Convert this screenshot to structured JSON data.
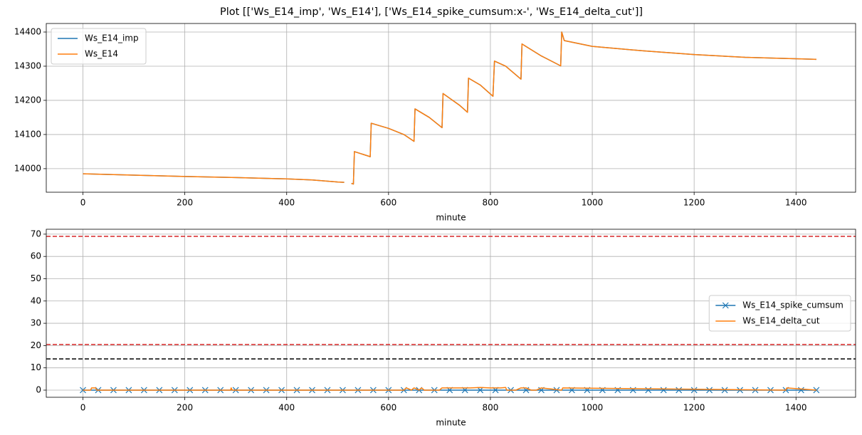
{
  "title": "Plot [['Ws_E14_imp', 'Ws_E14'], ['Ws_E14_spike_cumsum:x-', 'Ws_E14_delta_cut']]",
  "chart_data": [
    {
      "type": "line",
      "xlabel": "minute",
      "grid": true,
      "legend": "upper left",
      "xlim": [
        -72,
        1517
      ],
      "xticks": [
        0,
        200,
        400,
        600,
        800,
        1000,
        1200,
        1400
      ],
      "ylim": [
        13931,
        14425
      ],
      "yticks": [
        14000,
        14100,
        14200,
        14300,
        14400
      ],
      "series": [
        {
          "name": "Ws_E14_imp",
          "color": "#1f77b4",
          "x": [
            0,
            100,
            200,
            300,
            400,
            450,
            500,
            513,
            520,
            527,
            531,
            533,
            560,
            564,
            566,
            600,
            630,
            650,
            652,
            680,
            705,
            707,
            740,
            755,
            757,
            780,
            805,
            808,
            830,
            860,
            862,
            900,
            938,
            940,
            945,
            1000,
            1100,
            1200,
            1300,
            1440
          ],
          "values": [
            13985,
            13981,
            13977,
            13974,
            13970,
            13967,
            13961,
            13960,
            null,
            13957,
            13955,
            14050,
            14037,
            14035,
            14133,
            14118,
            14100,
            14080,
            14175,
            14150,
            14120,
            14220,
            14185,
            14165,
            14265,
            14245,
            14212,
            14315,
            14300,
            14262,
            14365,
            14330,
            14301,
            14400,
            14375,
            14358,
            14345,
            14334,
            14326,
            14320
          ]
        },
        {
          "name": "Ws_E14",
          "color": "#ff7f0e",
          "x": [
            0,
            100,
            200,
            300,
            400,
            450,
            500,
            513,
            520,
            527,
            531,
            533,
            560,
            564,
            566,
            600,
            630,
            650,
            652,
            680,
            705,
            707,
            740,
            755,
            757,
            780,
            805,
            808,
            830,
            860,
            862,
            900,
            938,
            940,
            945,
            1000,
            1100,
            1200,
            1300,
            1440
          ],
          "values": [
            13985,
            13981,
            13977,
            13974,
            13970,
            13967,
            13961,
            13960,
            null,
            13957,
            13955,
            14050,
            14037,
            14035,
            14133,
            14118,
            14100,
            14080,
            14175,
            14150,
            14120,
            14220,
            14185,
            14165,
            14265,
            14245,
            14212,
            14315,
            14300,
            14262,
            14365,
            14330,
            14301,
            14400,
            14375,
            14358,
            14345,
            14334,
            14326,
            14320
          ]
        }
      ]
    },
    {
      "type": "line",
      "xlabel": "minute",
      "grid": true,
      "legend": "center right",
      "xlim": [
        -72,
        1517
      ],
      "xticks": [
        0,
        200,
        400,
        600,
        800,
        1000,
        1200,
        1400
      ],
      "ylim": [
        -3.2,
        72.2
      ],
      "yticks": [
        0,
        10,
        20,
        30,
        40,
        50,
        60,
        70
      ],
      "hlines": [
        {
          "value": 69,
          "color": "#d62728"
        },
        {
          "value": 20.5,
          "color": "#d62728"
        },
        {
          "value": 14,
          "color": "#000000"
        }
      ],
      "series": [
        {
          "name": "Ws_E14_spike_cumsum",
          "color": "#1f77b4",
          "marker": "x",
          "x": [
            0,
            30,
            60,
            90,
            120,
            150,
            180,
            210,
            240,
            270,
            300,
            330,
            360,
            390,
            420,
            450,
            480,
            510,
            540,
            570,
            600,
            630,
            660,
            690,
            720,
            750,
            780,
            810,
            840,
            870,
            900,
            930,
            960,
            990,
            1020,
            1050,
            1080,
            1110,
            1140,
            1170,
            1200,
            1230,
            1260,
            1290,
            1320,
            1350,
            1380,
            1410,
            1440
          ],
          "values": [
            0,
            0,
            0,
            0,
            0,
            0,
            0,
            0,
            0,
            0,
            0,
            0,
            0,
            0,
            0,
            0,
            0,
            0,
            0,
            0,
            0,
            0,
            0,
            0,
            0,
            0,
            0,
            0,
            0,
            0,
            0,
            0,
            0,
            0,
            0,
            0,
            0,
            0,
            0,
            0,
            0,
            0,
            0,
            0,
            0,
            0,
            0,
            0,
            0
          ]
        },
        {
          "name": "Ws_E14_delta_cut",
          "color": "#ff7f0e",
          "x": [
            0,
            15,
            17,
            25,
            27,
            290,
            291,
            293,
            630,
            635,
            645,
            650,
            660,
            665,
            670,
            680,
            700,
            705,
            740,
            760,
            780,
            800,
            820,
            830,
            832,
            850,
            860,
            870,
            880,
            890,
            900,
            940,
            942,
            1380,
            1382,
            1440
          ],
          "values": [
            0,
            0,
            1,
            1,
            0,
            0,
            1,
            0,
            0,
            1,
            0,
            1,
            0,
            1,
            0,
            0,
            0,
            1,
            1,
            1,
            1.2,
            1,
            1,
            1.2,
            0,
            0,
            1,
            1,
            0,
            0,
            1,
            0,
            1,
            0,
            1,
            0
          ]
        }
      ]
    }
  ]
}
